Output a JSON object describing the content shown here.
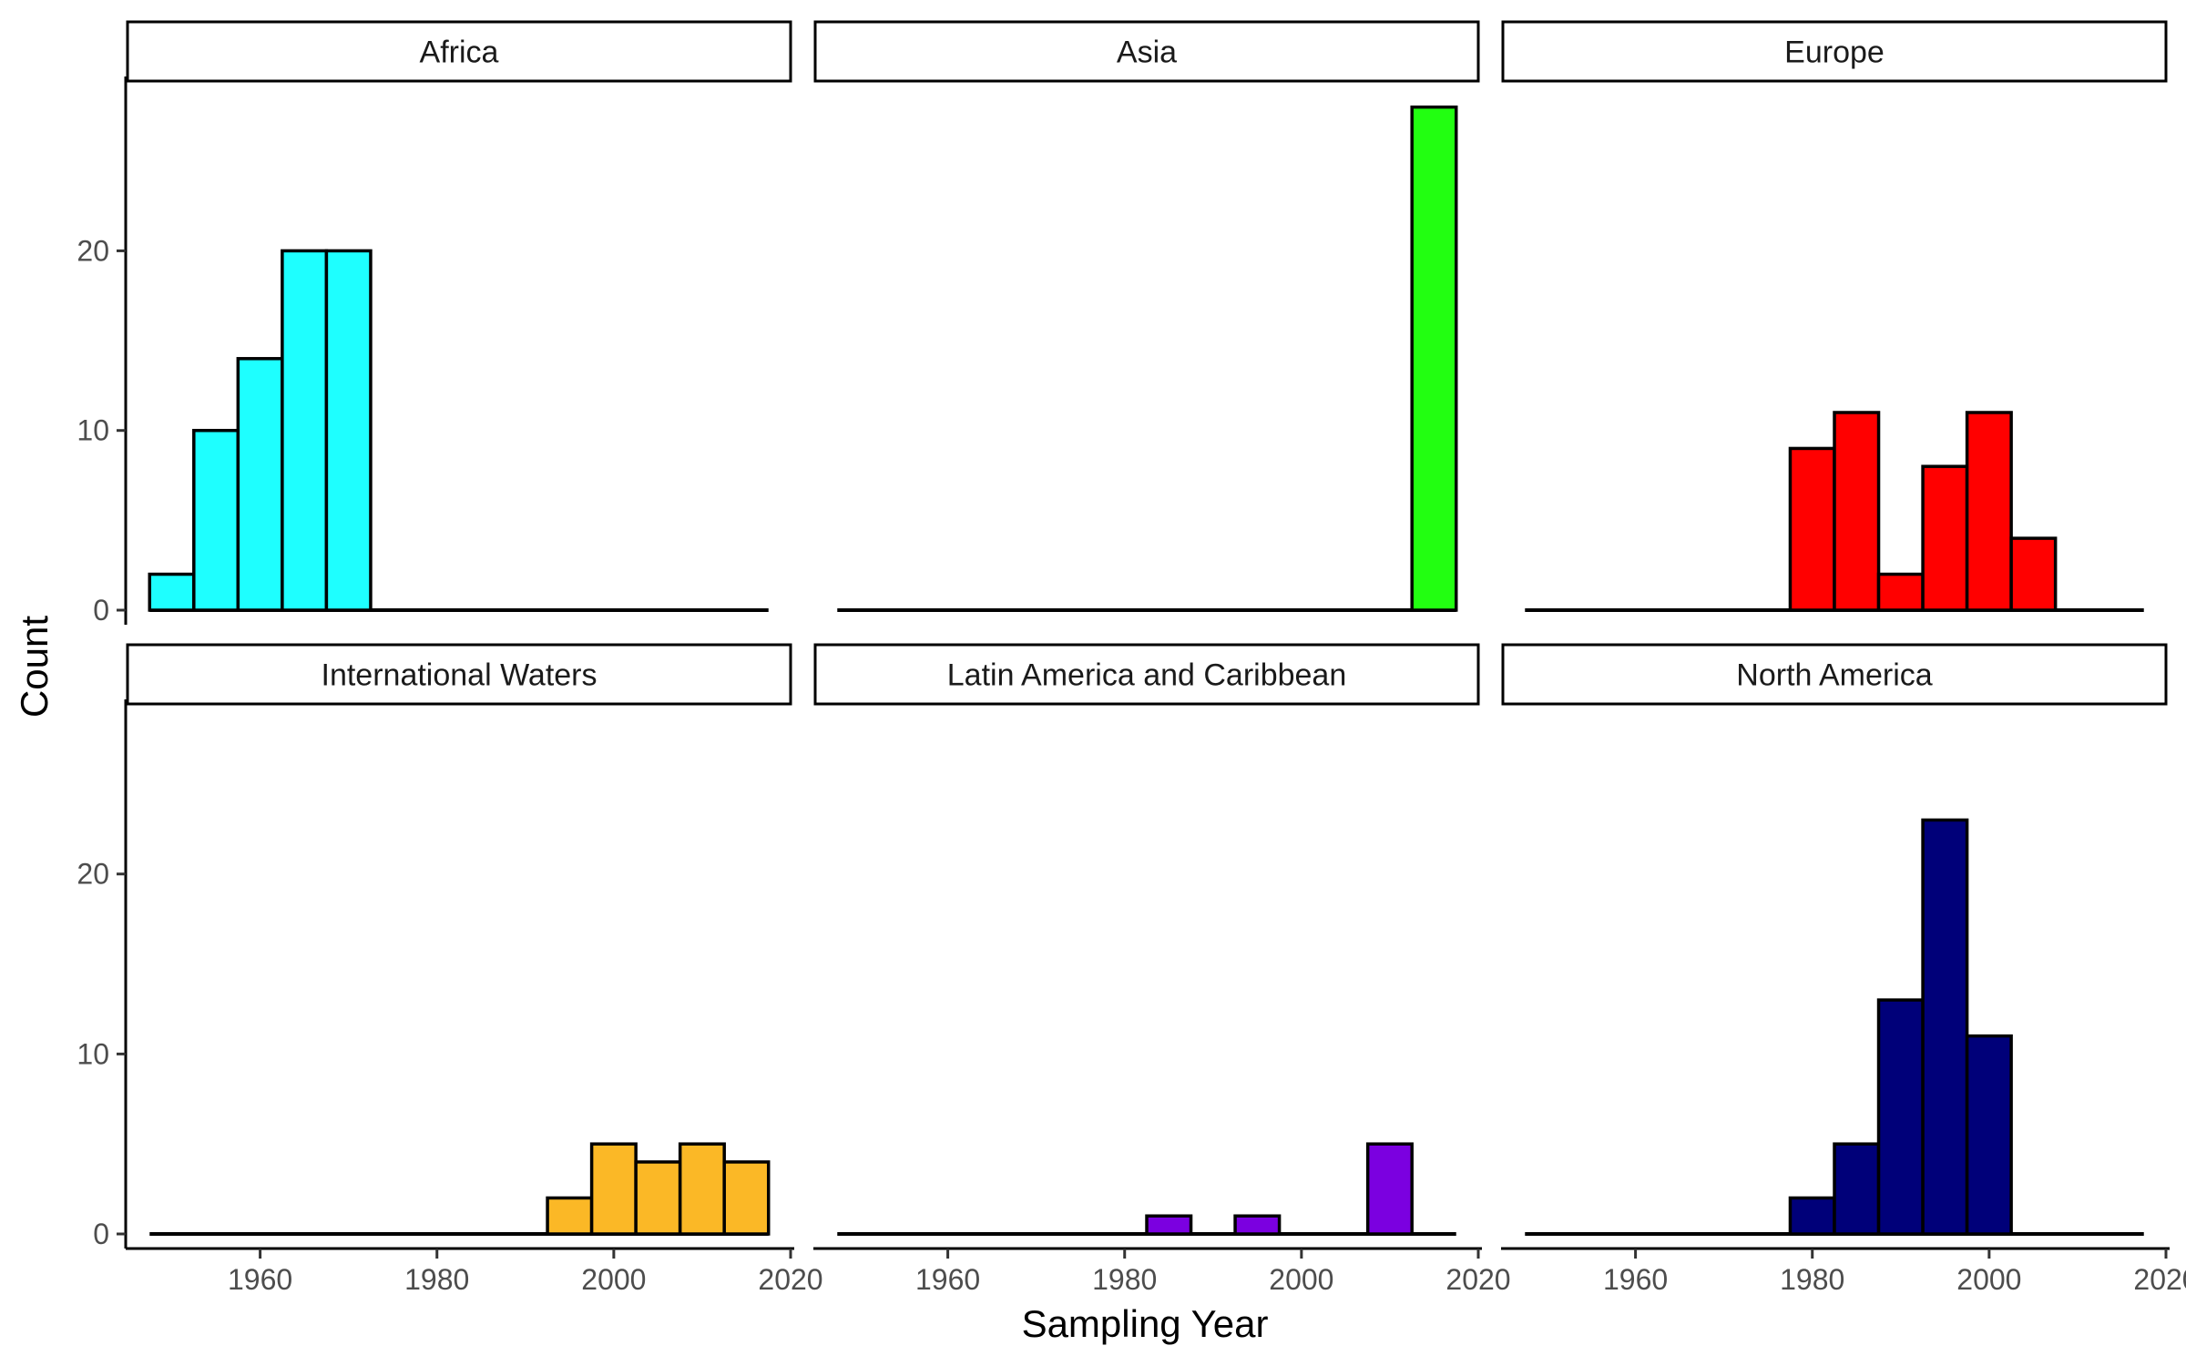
{
  "chart_data": {
    "type": "bar",
    "subtype": "faceted-histogram",
    "xlabel": "Sampling Year",
    "ylabel": "Count",
    "xlim": [
      1945,
      2020
    ],
    "ylim": [
      0,
      29.5
    ],
    "x_ticks": [
      1960,
      1980,
      2000,
      2020
    ],
    "y_ticks": [
      0,
      10,
      20
    ],
    "bin_width": 5,
    "grid": false,
    "legend": "none",
    "facet_layout": {
      "rows": 2,
      "cols": 3
    },
    "facets": [
      {
        "name": "Africa",
        "color": "#1EFFFF",
        "range": [
          1947.5,
          2017.5
        ],
        "bins": [
          {
            "start": 1947.5,
            "end": 1952.5,
            "count": 2
          },
          {
            "start": 1952.5,
            "end": 1957.5,
            "count": 10
          },
          {
            "start": 1957.5,
            "end": 1962.5,
            "count": 14
          },
          {
            "start": 1962.5,
            "end": 1967.5,
            "count": 20
          },
          {
            "start": 1967.5,
            "end": 1972.5,
            "count": 20
          }
        ]
      },
      {
        "name": "Asia",
        "color": "#22FF11",
        "range": [
          1947.5,
          2017.5
        ],
        "bins": [
          {
            "start": 2012.5,
            "end": 2017.5,
            "count": 28
          }
        ]
      },
      {
        "name": "Europe",
        "color": "#FF0000",
        "range": [
          1947.5,
          2017.5
        ],
        "bins": [
          {
            "start": 1977.5,
            "end": 1982.5,
            "count": 9
          },
          {
            "start": 1982.5,
            "end": 1987.5,
            "count": 11
          },
          {
            "start": 1987.5,
            "end": 1992.5,
            "count": 2
          },
          {
            "start": 1992.5,
            "end": 1997.5,
            "count": 8
          },
          {
            "start": 1997.5,
            "end": 2002.5,
            "count": 11
          },
          {
            "start": 2002.5,
            "end": 2007.5,
            "count": 4
          }
        ]
      },
      {
        "name": "International Waters",
        "color": "#FBB826",
        "range": [
          1947.5,
          2017.5
        ],
        "bins": [
          {
            "start": 1992.5,
            "end": 1997.5,
            "count": 2
          },
          {
            "start": 1997.5,
            "end": 2002.5,
            "count": 5
          },
          {
            "start": 2002.5,
            "end": 2007.5,
            "count": 4
          },
          {
            "start": 2007.5,
            "end": 2012.5,
            "count": 5
          },
          {
            "start": 2012.5,
            "end": 2017.5,
            "count": 4
          }
        ]
      },
      {
        "name": "Latin America and Caribbean",
        "color": "#7B00E0",
        "range": [
          1947.5,
          2017.5
        ],
        "bins": [
          {
            "start": 1982.5,
            "end": 1987.5,
            "count": 1
          },
          {
            "start": 1992.5,
            "end": 1997.5,
            "count": 1
          },
          {
            "start": 2007.5,
            "end": 2012.5,
            "count": 5
          }
        ]
      },
      {
        "name": "North America",
        "color": "#000079",
        "range": [
          1947.5,
          2017.5
        ],
        "bins": [
          {
            "start": 1977.5,
            "end": 1982.5,
            "count": 2
          },
          {
            "start": 1982.5,
            "end": 1987.5,
            "count": 5
          },
          {
            "start": 1987.5,
            "end": 1992.5,
            "count": 13
          },
          {
            "start": 1992.5,
            "end": 1997.5,
            "count": 23
          },
          {
            "start": 1997.5,
            "end": 2002.5,
            "count": 11
          }
        ]
      }
    ]
  }
}
